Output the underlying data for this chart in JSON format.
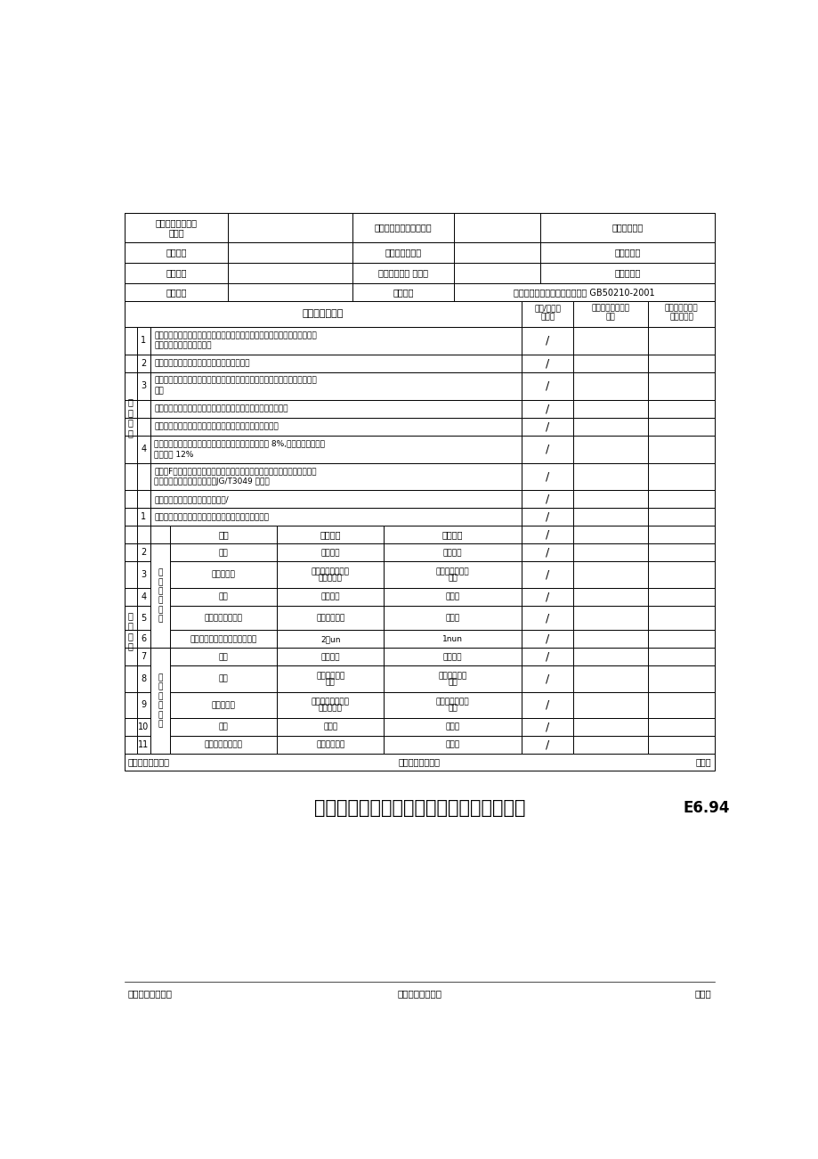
{
  "page_bg": "#ffffff",
  "title_main": "溶剂性涂料涂饰工程检验批质量验收记录表",
  "title_code": "E6.94",
  "footer_left": "施工单位检查结果",
  "footer_mid": "监督质量检查员：",
  "footer_right": "年月日",
  "bottom_footer_left": "监理单位验收结论",
  "bottom_footer_mid": "专业监理工程师：",
  "bottom_footer_right": "年月日",
  "main_ctrl_label": "主\n控\n项\n目",
  "gen_label": "一\n般\n项\n目",
  "color_group_label": "色\n漆\n涂\n饰\n质\n量",
  "clear_group_label": "清\n漆\n涂\n饰\n质\n量"
}
